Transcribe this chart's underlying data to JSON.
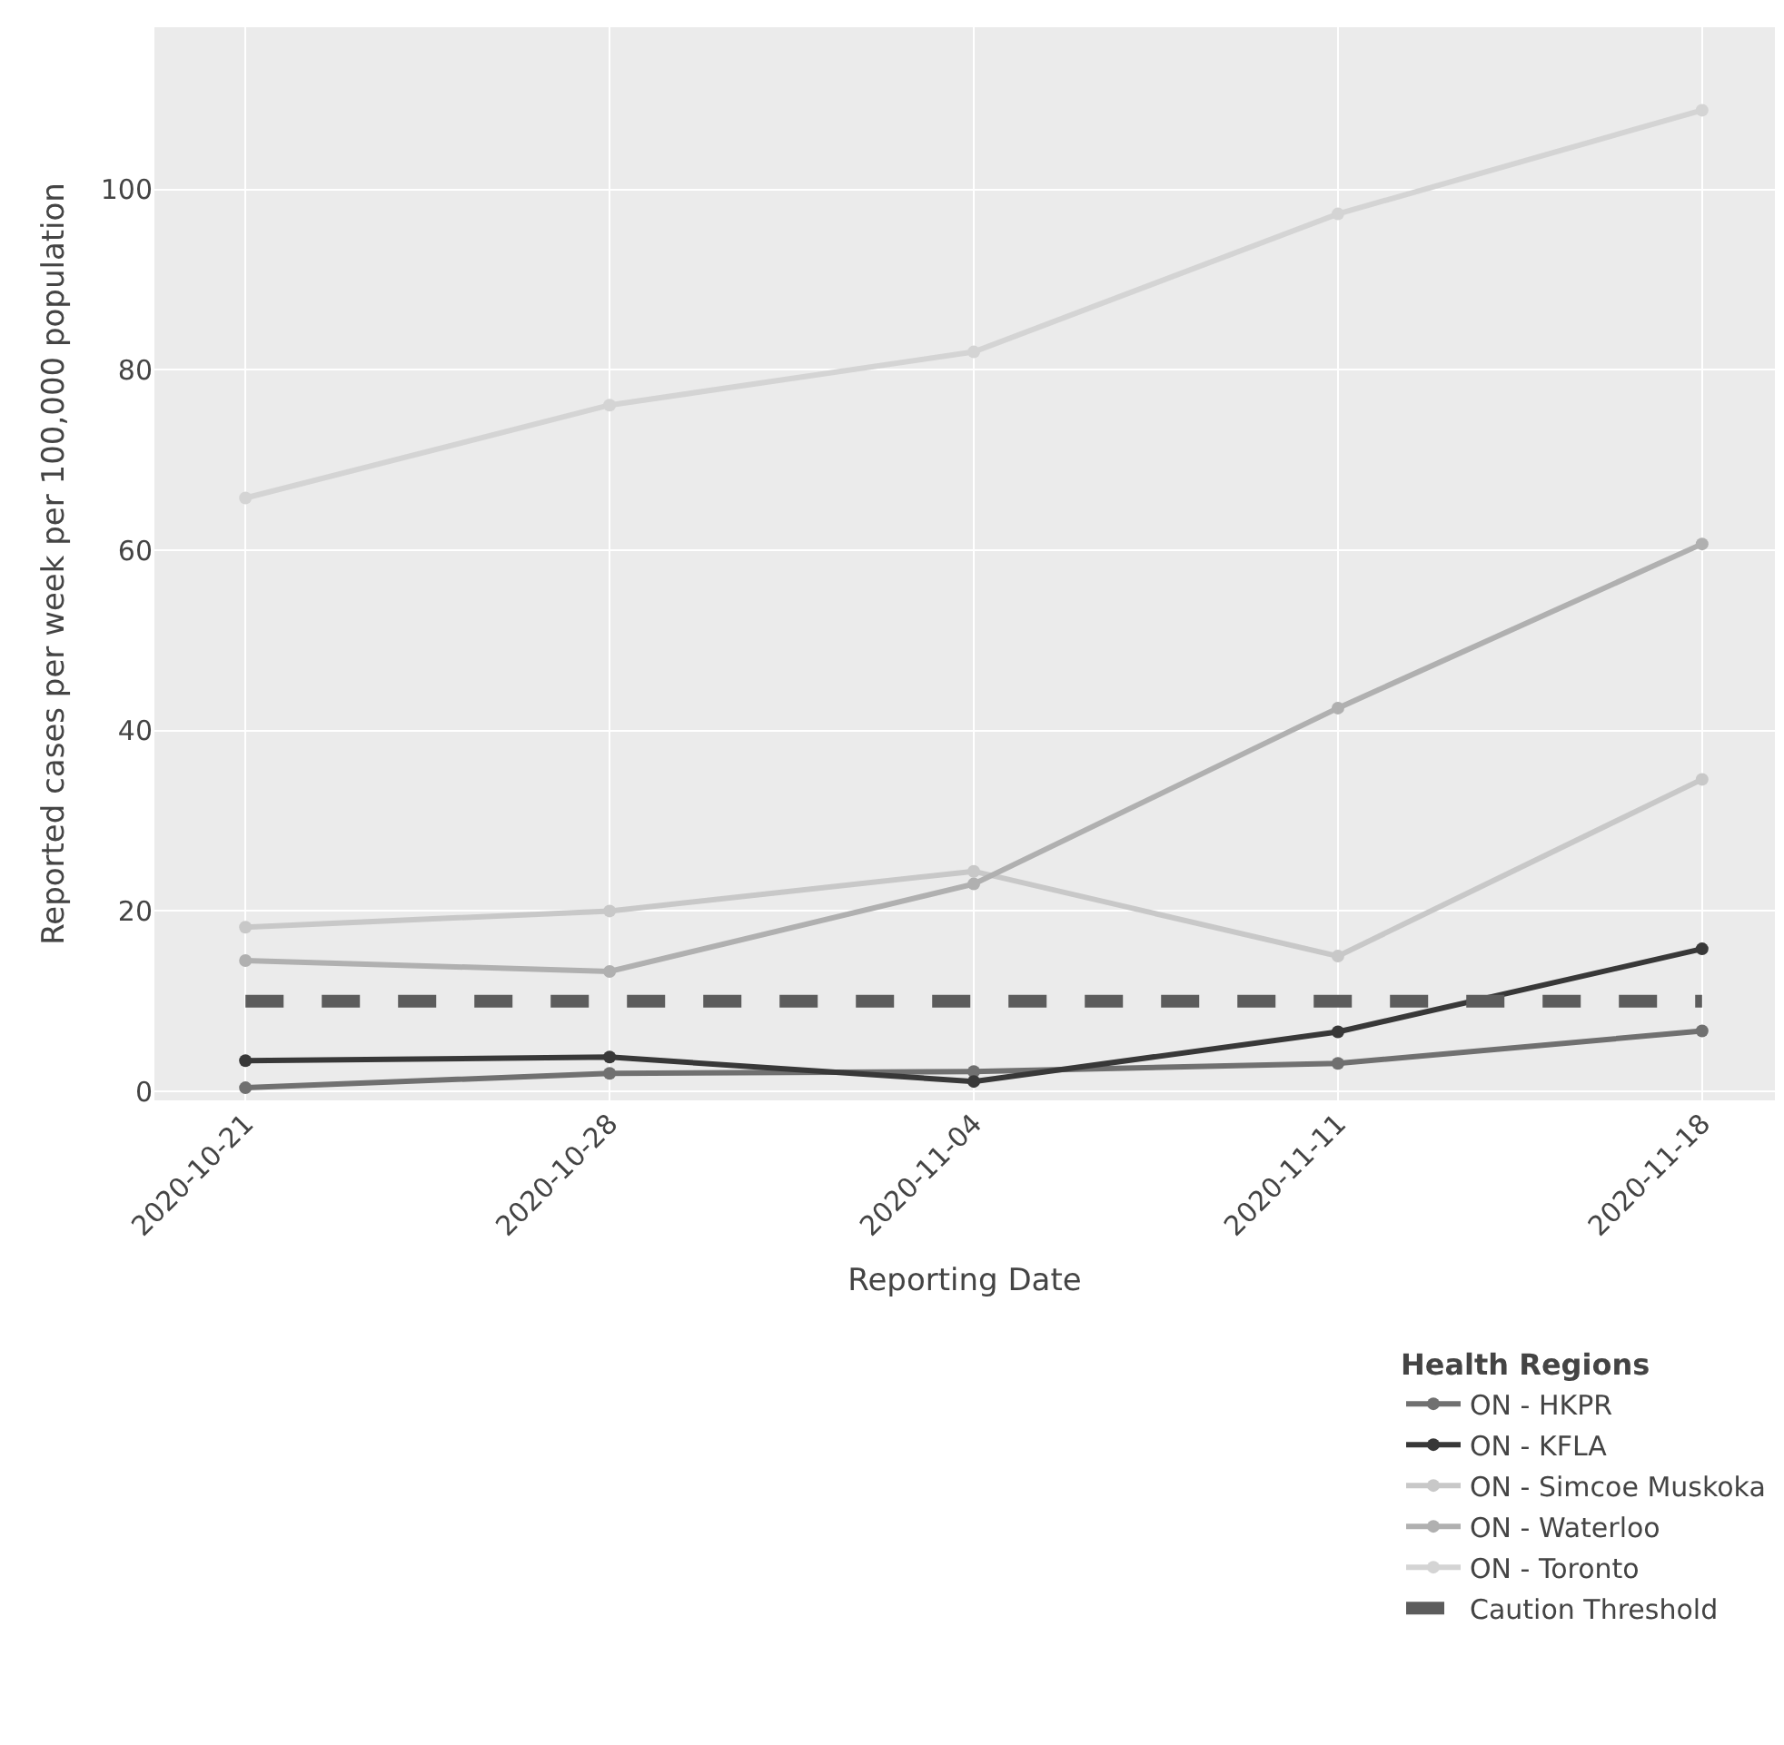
{
  "chart_data": {
    "type": "line",
    "xlabel": "Reporting Date",
    "ylabel": "Reported cases per week per 100,000 population",
    "legend_title": "Health Regions",
    "categories": [
      "2020-10-21",
      "2020-10-28",
      "2020-11-04",
      "2020-11-11",
      "2020-11-18"
    ],
    "series": [
      {
        "name": "ON - HKPR",
        "color": "#707070",
        "values": [
          0.4,
          2,
          2.2,
          3.1,
          6.7
        ]
      },
      {
        "name": "ON - KFLA",
        "color": "#383838",
        "values": [
          3.4,
          3.8,
          1.1,
          6.6,
          15.8
        ]
      },
      {
        "name": "ON - Simcoe Muskoka",
        "color": "#c8c8c8",
        "values": [
          18.2,
          20,
          24.4,
          15,
          34.6
        ]
      },
      {
        "name": "ON - Waterloo",
        "color": "#b0b0b0",
        "values": [
          14.5,
          13.3,
          23,
          42.5,
          60.7
        ]
      },
      {
        "name": "ON - Toronto",
        "color": "#d4d4d4",
        "values": [
          65.8,
          76.1,
          82,
          97.3,
          108.8
        ]
      },
      {
        "name": "Caution Threshold",
        "color": "#5c5c5c",
        "values": [
          10,
          10,
          10,
          10,
          10
        ],
        "line_style": "dashed",
        "marker": "none"
      }
    ],
    "marker": "circle",
    "line_style": "solid",
    "ylim": [
      -1,
      118
    ],
    "yticks": [
      0,
      20,
      40,
      60,
      80,
      100
    ],
    "grid": true,
    "legend": "bottom right"
  }
}
